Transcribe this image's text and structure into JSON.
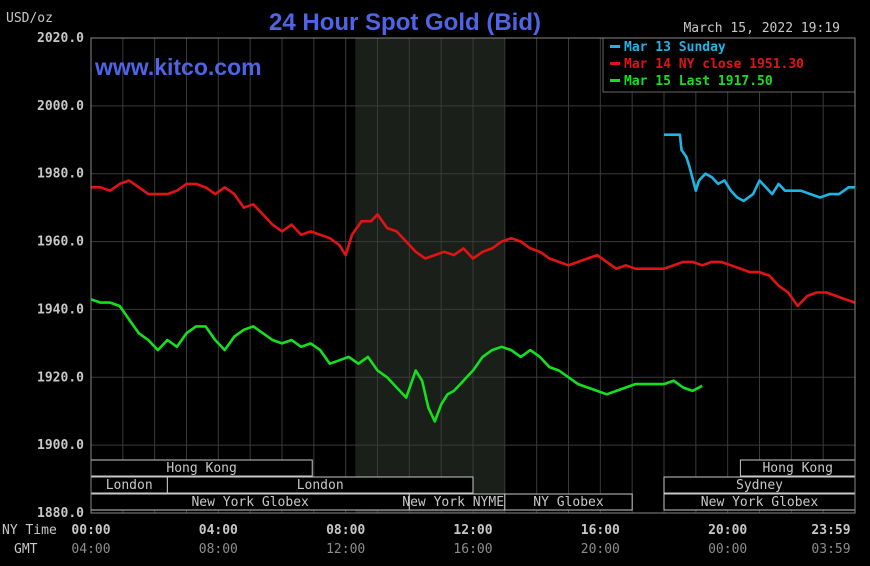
{
  "header": {
    "unit_label": "USD/oz",
    "title": "24 Hour Spot Gold (Bid)",
    "timestamp": "March 15, 2022 19:19",
    "watermark": "www.kitco.com"
  },
  "colors": {
    "background": "#000000",
    "plot_background": "#000000",
    "nymex_shade": "#1a1f1a",
    "grid": "#3a3a3a",
    "axis_text": "#c8c8c8",
    "title": "#4f64e6",
    "sunday": "#1eb4e6",
    "ny_close": "#e01414",
    "last": "#14e01e",
    "session_border": "#c8c8c8"
  },
  "legend": {
    "position": "top-right",
    "entries": [
      {
        "label": "Mar 13 Sunday",
        "color": "#1eb4e6"
      },
      {
        "label": "Mar 14 NY close 1951.30",
        "color": "#e01414"
      },
      {
        "label": "Mar 15 Last 1917.50",
        "color": "#14e01e"
      }
    ]
  },
  "axes": {
    "y_ticks": [
      "2020.0",
      "2000.0",
      "1980.0",
      "1960.0",
      "1940.0",
      "1920.0",
      "1900.0",
      "1880.0"
    ],
    "y_range": [
      1880,
      2020
    ],
    "x_range_hours": [
      0,
      24
    ],
    "ny_row_label": "NY Time",
    "gmt_row_label": "GMT",
    "ny_ticks": [
      "00:00",
      "04:00",
      "08:00",
      "12:00",
      "16:00",
      "20:00",
      "23:59"
    ],
    "gmt_ticks": [
      "04:00",
      "08:00",
      "12:00",
      "16:00",
      "20:00",
      "00:00",
      "03:59"
    ]
  },
  "sessions": [
    {
      "label": "Hong Kong",
      "start": 0.0,
      "end": 6.95,
      "row": 0
    },
    {
      "label": "Hong Kong",
      "start": 20.4,
      "end": 24.0,
      "row": 0
    },
    {
      "label": "London",
      "start": 0.0,
      "end": 2.4,
      "row": 1
    },
    {
      "label": "London",
      "start": 2.4,
      "end": 12.0,
      "row": 1
    },
    {
      "label": "Sydney",
      "start": 18.0,
      "end": 24.0,
      "row": 1
    },
    {
      "label": "New York Globex",
      "start": 0.0,
      "end": 10.0,
      "row": 2
    },
    {
      "label": "New York NYMEX",
      "start": 10.0,
      "end": 13.0,
      "row": 2
    },
    {
      "label": "NY Globex",
      "start": 13.0,
      "end": 17.0,
      "row": 2
    },
    {
      "label": "New York Globex",
      "start": 18.0,
      "end": 24.0,
      "row": 2
    }
  ],
  "chart_data": {
    "type": "line",
    "title": "24 Hour Spot Gold (Bid)",
    "ylabel": "USD/oz",
    "ylim": [
      1880,
      2020
    ],
    "grid": true,
    "nymex_shade": [
      8.3,
      13.0
    ],
    "series": [
      {
        "name": "Mar 13 Sunday",
        "color": "#1eb4e6",
        "x": [
          18.0,
          18.5,
          18.55,
          18.7,
          18.8,
          19.0,
          19.1,
          19.3,
          19.5,
          19.7,
          19.9,
          20.1,
          20.3,
          20.5,
          20.8,
          21.0,
          21.2,
          21.4,
          21.6,
          21.8,
          22.0,
          22.3,
          22.6,
          22.9,
          23.2,
          23.5,
          23.8,
          24.0
        ],
        "y": [
          1991.5,
          1991.5,
          1987,
          1985,
          1982,
          1975,
          1978,
          1980,
          1979,
          1977,
          1978,
          1975,
          1973,
          1972,
          1974,
          1978,
          1976,
          1974,
          1977,
          1975,
          1975,
          1975,
          1974,
          1973,
          1974,
          1974,
          1976,
          1976
        ]
      },
      {
        "name": "Mar 14 NY close 1951.30",
        "color": "#e01414",
        "x": [
          0.0,
          0.3,
          0.6,
          0.9,
          1.2,
          1.5,
          1.8,
          2.1,
          2.4,
          2.7,
          3.0,
          3.3,
          3.6,
          3.9,
          4.2,
          4.5,
          4.8,
          5.1,
          5.4,
          5.7,
          6.0,
          6.3,
          6.6,
          6.9,
          7.2,
          7.5,
          7.8,
          8.0,
          8.2,
          8.5,
          8.8,
          9.0,
          9.3,
          9.6,
          9.9,
          10.2,
          10.5,
          10.8,
          11.1,
          11.4,
          11.7,
          12.0,
          12.3,
          12.6,
          12.9,
          13.2,
          13.5,
          13.8,
          14.1,
          14.4,
          14.7,
          15.0,
          15.3,
          15.6,
          15.9,
          16.2,
          16.5,
          16.8,
          17.1,
          17.4,
          17.7,
          18.0,
          18.3,
          18.6,
          18.9,
          19.2,
          19.5,
          19.8,
          20.1,
          20.4,
          20.7,
          21.0,
          21.3,
          21.6,
          21.9,
          22.2,
          22.5,
          22.8,
          23.1,
          23.4,
          23.7,
          24.0
        ],
        "y": [
          1976,
          1976,
          1975,
          1977,
          1978,
          1976,
          1974,
          1974,
          1974,
          1975,
          1977,
          1977,
          1976,
          1974,
          1976,
          1974,
          1970,
          1971,
          1968,
          1965,
          1963,
          1965,
          1962,
          1963,
          1962,
          1961,
          1959,
          1956,
          1962,
          1966,
          1966,
          1968,
          1964,
          1963,
          1960,
          1957,
          1955,
          1956,
          1957,
          1956,
          1958,
          1955,
          1957,
          1958,
          1960,
          1961,
          1960,
          1958,
          1957,
          1955,
          1954,
          1953,
          1954,
          1955,
          1956,
          1954,
          1952,
          1953,
          1952,
          1952,
          1952,
          1952,
          1953,
          1954,
          1954,
          1953,
          1954,
          1954,
          1953,
          1952,
          1951,
          1951,
          1950,
          1947,
          1945,
          1941,
          1944,
          1945,
          1945,
          1944,
          1943,
          1942
        ]
      },
      {
        "name": "Mar 15 Last 1917.50",
        "color": "#14e01e",
        "x": [
          0.0,
          0.3,
          0.6,
          0.9,
          1.2,
          1.5,
          1.8,
          2.1,
          2.4,
          2.7,
          3.0,
          3.3,
          3.6,
          3.9,
          4.2,
          4.5,
          4.8,
          5.1,
          5.4,
          5.7,
          6.0,
          6.3,
          6.6,
          6.9,
          7.2,
          7.5,
          7.8,
          8.1,
          8.4,
          8.7,
          9.0,
          9.3,
          9.6,
          9.9,
          10.2,
          10.4,
          10.6,
          10.8,
          11.0,
          11.2,
          11.4,
          11.6,
          11.8,
          12.0,
          12.3,
          12.6,
          12.9,
          13.2,
          13.5,
          13.8,
          14.1,
          14.4,
          14.7,
          15.0,
          15.3,
          15.6,
          15.9,
          16.2,
          16.5,
          16.8,
          17.1,
          17.4,
          17.7,
          18.0,
          18.3,
          18.6,
          18.9,
          19.2
        ],
        "y": [
          1943,
          1942,
          1942,
          1941,
          1937,
          1933,
          1931,
          1928,
          1931,
          1929,
          1933,
          1935,
          1935,
          1931,
          1928,
          1932,
          1934,
          1935,
          1933,
          1931,
          1930,
          1931,
          1929,
          1930,
          1928,
          1924,
          1925,
          1926,
          1924,
          1926,
          1922,
          1920,
          1917,
          1914,
          1922,
          1919,
          1911,
          1907,
          1912,
          1915,
          1916,
          1918,
          1920,
          1922,
          1926,
          1928,
          1929,
          1928,
          1926,
          1928,
          1926,
          1923,
          1922,
          1920,
          1918,
          1917,
          1916,
          1915,
          1916,
          1917,
          1918,
          1918,
          1918,
          1918,
          1919,
          1917,
          1916,
          1917.5
        ]
      }
    ]
  }
}
